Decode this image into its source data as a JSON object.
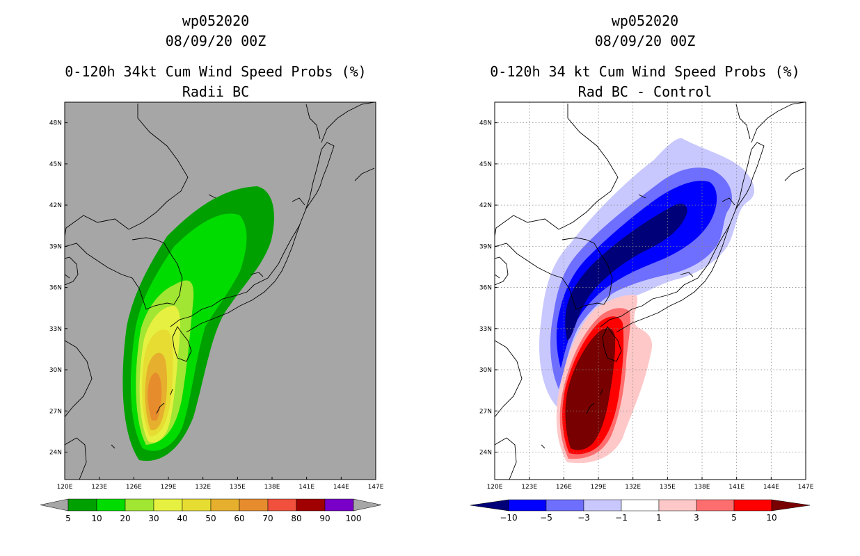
{
  "colors": {
    "ocean_left": "#a6a6a6",
    "land_edge": "#000000",
    "prob": [
      "#00a000",
      "#00dc00",
      "#a0e632",
      "#e6f040",
      "#e6dc32",
      "#e6af2d",
      "#e68c2d",
      "#f0503c",
      "#a00000",
      "#7800c8"
    ],
    "diff": [
      "#000078",
      "#0000ff",
      "#6e6eff",
      "#c8c8ff",
      "#ffffff",
      "#ffc8c8",
      "#ff6e6e",
      "#ff0000",
      "#780000"
    ]
  },
  "chart_data": [
    {
      "type": "heatmap",
      "title_lines": [
        "wp052020",
        "08/09/20 00Z",
        "0-120h 34kt Cum Wind Speed Probs (%)",
        "Radii BC"
      ],
      "x_ticks": [
        "120E",
        "123E",
        "126E",
        "129E",
        "132E",
        "135E",
        "138E",
        "141E",
        "144E",
        "147E"
      ],
      "y_ticks": [
        "48N",
        "45N",
        "42N",
        "39N",
        "36N",
        "33N",
        "30N",
        "27N",
        "24N"
      ],
      "xlim": [
        120,
        147
      ],
      "ylim": [
        22,
        49.5
      ],
      "grid": false,
      "colorbar_labels": [
        "5",
        "10",
        "20",
        "30",
        "40",
        "50",
        "60",
        "70",
        "80",
        "90",
        "100"
      ],
      "colorbar_levels": [
        5,
        10,
        20,
        30,
        40,
        50,
        60,
        70,
        80,
        90,
        100
      ],
      "peak_value_pct": 60
    },
    {
      "type": "heatmap",
      "title_lines": [
        "wp052020",
        "08/09/20 00Z",
        "0-120h 34 kt Cum Wind Speed Probs (%)",
        "Rad BC - Control"
      ],
      "x_ticks": [
        "120E",
        "123E",
        "126E",
        "129E",
        "132E",
        "135E",
        "138E",
        "141E",
        "144E",
        "147E"
      ],
      "y_ticks": [
        "48N",
        "45N",
        "42N",
        "39N",
        "36N",
        "33N",
        "30N",
        "27N",
        "24N"
      ],
      "xlim": [
        120,
        147
      ],
      "ylim": [
        22,
        49.5
      ],
      "grid": true,
      "colorbar_labels": [
        "-10",
        "-5",
        "-3",
        "-1",
        "1",
        "3",
        "5",
        "10"
      ],
      "colorbar_levels": [
        -10,
        -5,
        -3,
        -1,
        1,
        3,
        5,
        10
      ]
    }
  ]
}
